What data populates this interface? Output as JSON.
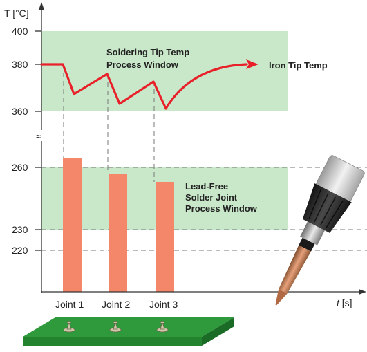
{
  "axes": {
    "y_label": "T [°C]",
    "x_label_var": "t",
    "x_label_unit": " [s]",
    "break_symbol": "≈",
    "y_ticks": [
      "400",
      "380",
      "360",
      "260",
      "230",
      "220"
    ]
  },
  "tip_window": {
    "label_line1": "Soldering Tip Temp",
    "label_line2": "Process Window",
    "range_c": [
      360,
      400
    ],
    "color": "#c9e8c9"
  },
  "joint_window": {
    "label_line1": "Lead-Free",
    "label_line2": "Solder Joint",
    "label_line3": "Process Window",
    "range_c": [
      230,
      260
    ],
    "color": "#c9e8c9"
  },
  "tip_curve": {
    "label": "Iron Tip Temp",
    "color": "#e8202a"
  },
  "joints": [
    {
      "label": "Joint 1",
      "temp_c": 265
    },
    {
      "label": "Joint 2",
      "temp_c": 256
    },
    {
      "label": "Joint 3",
      "temp_c": 252
    }
  ],
  "bar_color": "#f4876a",
  "pcb_color": "#2e9a3c"
}
